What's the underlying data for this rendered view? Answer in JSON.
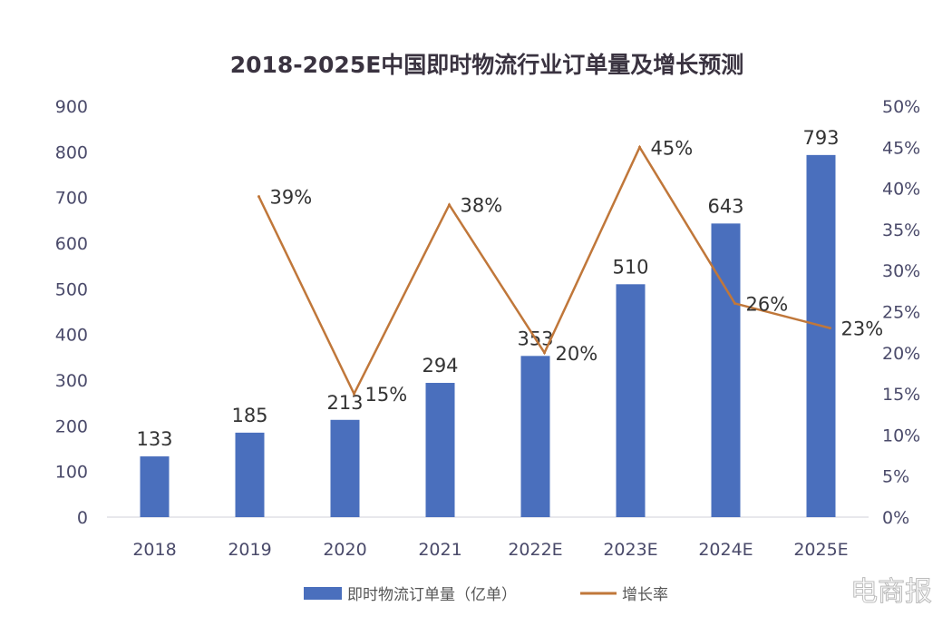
{
  "chart_data": {
    "type": "bar",
    "title": "2018-2025E中国即时物流行业订单量及增长预测",
    "categories": [
      "2018",
      "2019",
      "2020",
      "2021",
      "2022E",
      "2023E",
      "2024E",
      "2025E"
    ],
    "series": [
      {
        "name": "即时物流订单量（亿单）",
        "type": "bar",
        "axis": "left",
        "values": [
          133,
          185,
          213,
          294,
          353,
          510,
          643,
          793
        ],
        "color": "#4a6fbd"
      },
      {
        "name": "增长率",
        "type": "line",
        "axis": "right",
        "values": [
          null,
          39,
          15,
          38,
          20,
          45,
          26,
          23
        ],
        "labels": [
          "",
          "39%",
          "15%",
          "38%",
          "20%",
          "45%",
          "26%",
          "23%"
        ],
        "color": "#c0773a"
      }
    ],
    "left_axis": {
      "range": [
        0,
        900
      ],
      "ticks": [
        "0",
        "100",
        "200",
        "300",
        "400",
        "500",
        "600",
        "700",
        "800",
        "900"
      ]
    },
    "right_axis": {
      "range": [
        0,
        50
      ],
      "unit": "%",
      "ticks": [
        "0%",
        "5%",
        "10%",
        "15%",
        "20%",
        "25%",
        "30%",
        "35%",
        "40%",
        "45%",
        "50%"
      ]
    },
    "grid": false,
    "legend_placement": "bottom"
  },
  "watermark": "电商报"
}
